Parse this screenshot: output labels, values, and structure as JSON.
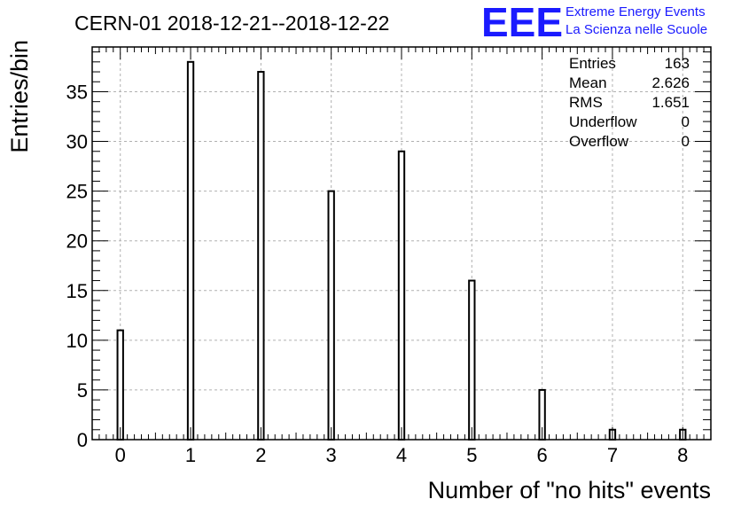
{
  "chart_data": {
    "type": "bar",
    "title": "CERN-01 2018-12-21--2018-12-22",
    "xlabel": "Number of \"no hits\" events",
    "ylabel": "Entries/bin",
    "x": [
      0,
      1,
      2,
      3,
      4,
      5,
      6,
      7,
      8
    ],
    "values": [
      11,
      38,
      37,
      25,
      29,
      16,
      5,
      1,
      1
    ],
    "xlim": [
      -0.4,
      8.4
    ],
    "ylim": [
      0,
      39.5
    ],
    "xticks": [
      "0",
      "1",
      "2",
      "3",
      "4",
      "5",
      "6",
      "7",
      "8"
    ],
    "yticks": [
      "0",
      "5",
      "10",
      "15",
      "20",
      "25",
      "30",
      "35"
    ],
    "grid": true,
    "colors": {
      "bar_fill": "#ffffff",
      "bar_stroke": "#000000",
      "grid": "#b0b0b0",
      "logo": "#1a1aff"
    }
  },
  "stats_box": {
    "rows": [
      {
        "label": "Entries",
        "value": "163"
      },
      {
        "label": "Mean",
        "value": "2.626"
      },
      {
        "label": "RMS",
        "value": "1.651"
      },
      {
        "label": "Underflow",
        "value": "0"
      },
      {
        "label": "Overflow",
        "value": "0"
      }
    ]
  },
  "logo": {
    "mark": "EEE",
    "line1": "Extreme Energy Events",
    "line2": "La Scienza nelle Scuole"
  }
}
